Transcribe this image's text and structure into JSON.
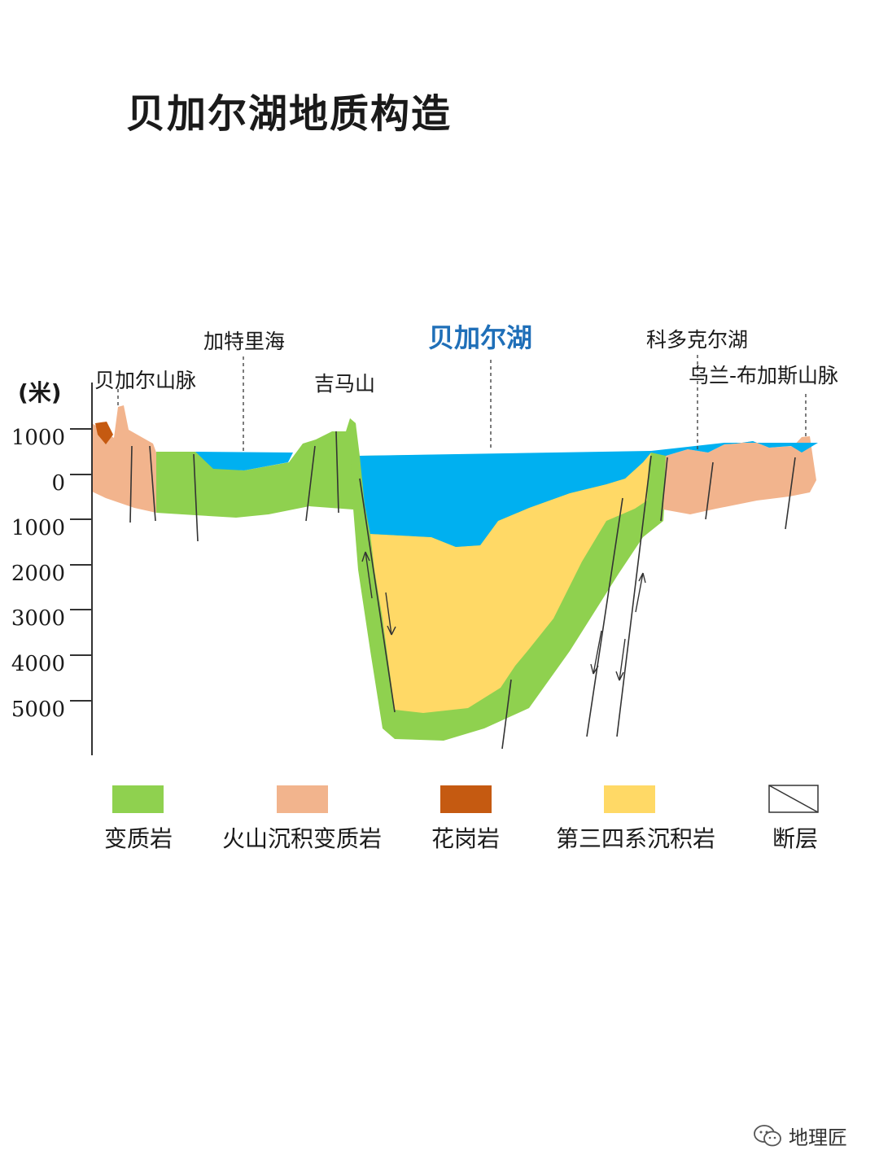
{
  "title": "贝加尔湖地质构造",
  "colors": {
    "metamorphic": "#8fd14f",
    "volcanic_sedimentary_metamorphic": "#f2b48d",
    "granite": "#c55a11",
    "quaternary_tertiary": "#ffd966",
    "water": "#00b0f0"
  },
  "axis": {
    "unit": "(米)",
    "ticks": [
      "1000",
      "0",
      "1000",
      "2000",
      "3000",
      "4000",
      "5000"
    ]
  },
  "places": {
    "baikal_range": "贝加尔山脉",
    "maloe_more": "加特里海",
    "jima_mountain": "吉马山",
    "lake": "贝加尔湖",
    "koduo_lake": "科多克尔湖",
    "ulan_range": "乌兰-布加斯山脉"
  },
  "legend": [
    {
      "label": "变质岩",
      "color": "#8fd14f",
      "kind": "fill"
    },
    {
      "label": "火山沉积变质岩",
      "color": "#f2b48d",
      "kind": "fill"
    },
    {
      "label": "花岗岩",
      "color": "#c55a11",
      "kind": "fill"
    },
    {
      "label": "第三四系沉积岩",
      "color": "#ffd966",
      "kind": "fill"
    },
    {
      "label": "断层",
      "color": "#ffffff",
      "kind": "fault"
    }
  ],
  "footer": {
    "text": "地理匠",
    "icon": "wechat-icon"
  }
}
